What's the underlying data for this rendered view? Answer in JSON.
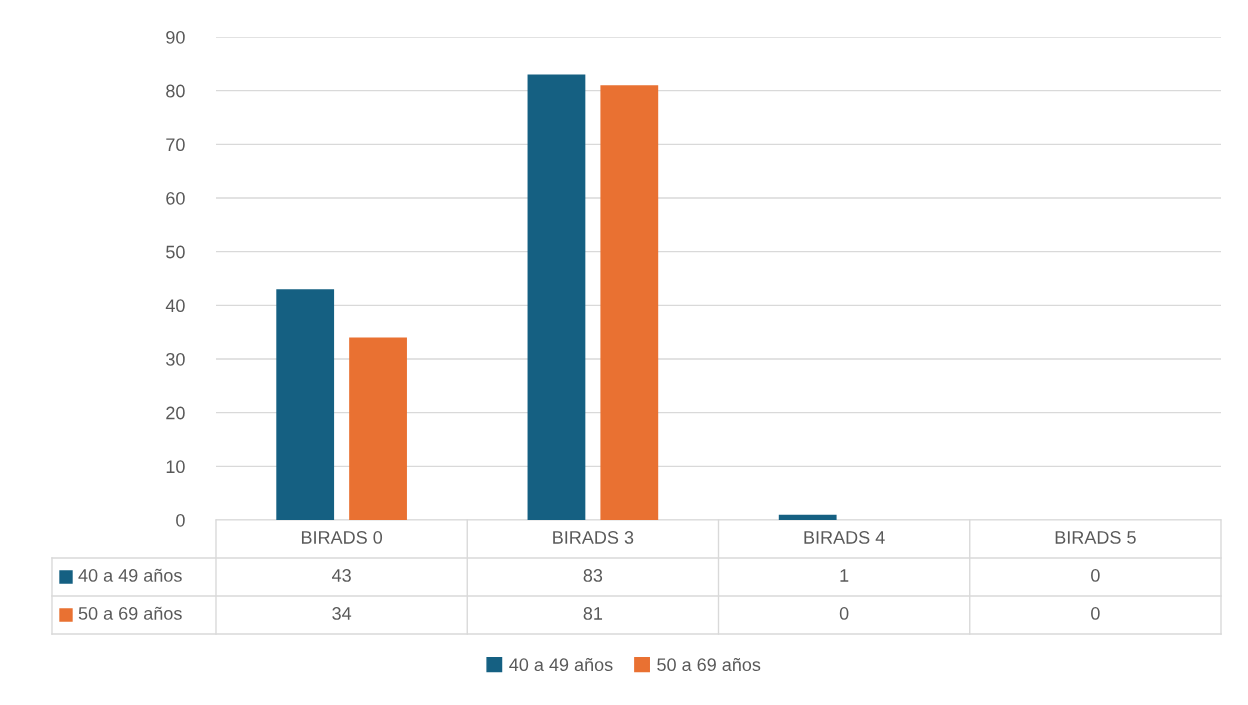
{
  "chart_data": {
    "type": "bar",
    "categories": [
      "BIRADS 0",
      "BIRADS 3",
      "BIRADS 4",
      "BIRADS 5"
    ],
    "series": [
      {
        "name": "40 a 49 años",
        "color": "#156082",
        "values": [
          43,
          83,
          1,
          0
        ]
      },
      {
        "name": "50 a 69 años",
        "color": "#e97132",
        "values": [
          34,
          81,
          0,
          0
        ]
      }
    ],
    "ylim": [
      0,
      90
    ],
    "yticks": [
      0,
      10,
      20,
      30,
      40,
      50,
      60,
      70,
      80,
      90
    ],
    "grid": "y",
    "legend": "bottom",
    "data_labels": true
  }
}
